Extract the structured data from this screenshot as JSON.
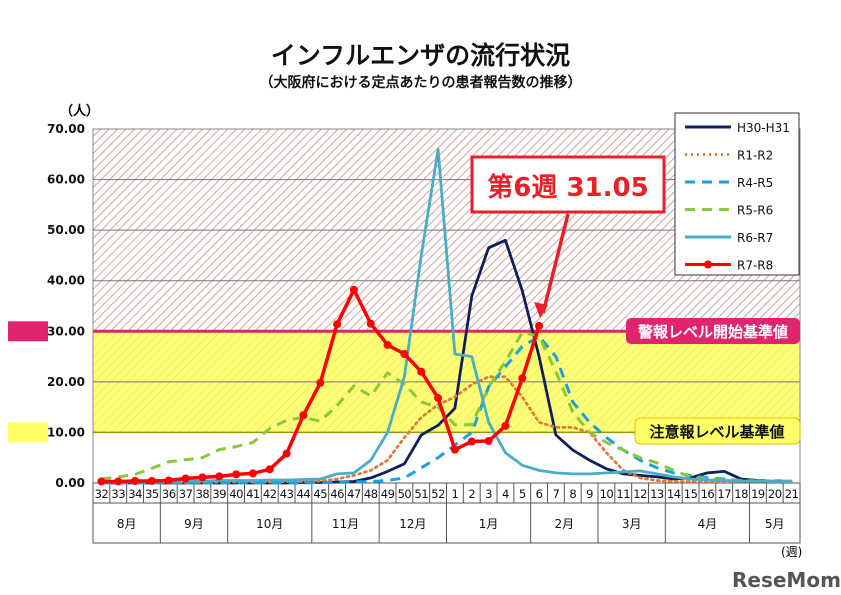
{
  "title": "インフルエンザの流行状況",
  "subtitle": "（大阪府における定点あたりの患者報告数の推移）",
  "watermark": "ReseMom",
  "chart_data": {
    "type": "line",
    "ylabel": "（人）",
    "xlabel": "(週)",
    "ylim": [
      0,
      70
    ],
    "yticks": [
      "0.00",
      "10.00",
      "20.00",
      "30.00",
      "40.00",
      "50.00",
      "60.00",
      "70.00"
    ],
    "grid": true,
    "legend": "top-right",
    "categories": [
      "32",
      "33",
      "34",
      "35",
      "36",
      "37",
      "38",
      "39",
      "40",
      "41",
      "42",
      "43",
      "44",
      "45",
      "46",
      "47",
      "48",
      "49",
      "50",
      "51",
      "52",
      "1",
      "2",
      "3",
      "4",
      "5",
      "6",
      "7",
      "8",
      "9",
      "10",
      "11",
      "12",
      "13",
      "14",
      "15",
      "16",
      "17",
      "18",
      "19",
      "20",
      "21"
    ],
    "months": [
      {
        "label": "8月",
        "weeks": 4
      },
      {
        "label": "9月",
        "weeks": 4
      },
      {
        "label": "10月",
        "weeks": 5
      },
      {
        "label": "11月",
        "weeks": 4
      },
      {
        "label": "12月",
        "weeks": 4
      },
      {
        "label": "1月",
        "weeks": 5
      },
      {
        "label": "2月",
        "weeks": 4
      },
      {
        "label": "3月",
        "weeks": 4
      },
      {
        "label": "4月",
        "weeks": 5
      },
      {
        "label": "5月",
        "weeks": 3
      }
    ],
    "thresholds": [
      {
        "label": "警報レベル開始基準値",
        "value": 30,
        "color": "#e0246e"
      },
      {
        "label": "注意報レベル基準値",
        "value": 10,
        "color": "#ffff66"
      }
    ],
    "annotation": {
      "text": "第6週 31.05",
      "week": "6",
      "value": 31.05,
      "color": "#e8202a"
    },
    "series": [
      {
        "name": "H30-H31",
        "color": "#0f1f5c",
        "style": "solid",
        "values": [
          0,
          0,
          0,
          0,
          0,
          0,
          0,
          0,
          0,
          0,
          0,
          0,
          0.1,
          0.1,
          0.2,
          0.3,
          1,
          2.3,
          3.8,
          9.5,
          11.4,
          14.8,
          37,
          46.5,
          48,
          38,
          25,
          9.5,
          6.5,
          4.5,
          2.8,
          1.8,
          1.5,
          1.2,
          0.8,
          1.0,
          2.0,
          2.3,
          0.8,
          0.5,
          0.4,
          0.4
        ]
      },
      {
        "name": "R1-R2",
        "color": "#e07b39",
        "style": "dotted",
        "values": [
          0.1,
          0.1,
          0.1,
          0.1,
          0.1,
          0.1,
          0.1,
          0.2,
          0.2,
          0.2,
          0.2,
          0.3,
          0.3,
          0.4,
          0.8,
          1.5,
          2.5,
          4.5,
          9,
          13,
          15.5,
          17,
          19.5,
          21,
          21,
          17,
          12,
          11,
          11,
          10,
          6,
          2.5,
          1,
          0.5,
          0.3,
          0.3,
          0.3,
          0.3,
          0.3,
          0.3,
          0.3,
          0.3
        ]
      },
      {
        "name": "R4-R5",
        "color": "#1ba1d9",
        "style": "dashed",
        "values": [
          0,
          0,
          0,
          0,
          0,
          0,
          0,
          0,
          0,
          0,
          0,
          0,
          0,
          0.1,
          0.1,
          0.2,
          0.3,
          0.5,
          1,
          3,
          5,
          7.5,
          10,
          19,
          23,
          27,
          29,
          25,
          16,
          12,
          9,
          6.5,
          4.5,
          3,
          2,
          1.5,
          1,
          0.8,
          0.5,
          0.4,
          0.3,
          0.3
        ]
      },
      {
        "name": "R5-R6",
        "color": "#8cc63f",
        "style": "dashed",
        "values": [
          0.8,
          1.2,
          1.7,
          2.9,
          4.2,
          4.6,
          5.0,
          6.6,
          7.2,
          8.0,
          10.8,
          12.4,
          13.0,
          12.2,
          15.3,
          19.2,
          17.2,
          21.8,
          19.5,
          16,
          15,
          11.5,
          11.5,
          19,
          24,
          29.8,
          29,
          22,
          14,
          10,
          8,
          6.5,
          5,
          4,
          2.5,
          1.2,
          0.8,
          0.6,
          0.5,
          0.4,
          0.4,
          0.4
        ]
      },
      {
        "name": "R6-R7",
        "color": "#4bacc6",
        "style": "solid",
        "values": [
          0.3,
          0.3,
          0.3,
          0.3,
          0.3,
          0.4,
          0.4,
          0.5,
          0.5,
          0.5,
          0.6,
          0.6,
          0.7,
          0.8,
          1.8,
          2,
          4.5,
          10,
          21,
          45,
          66,
          25.5,
          25,
          12,
          6,
          3.5,
          2.5,
          2,
          1.8,
          1.8,
          2,
          2.2,
          2.4,
          1.8,
          1.2,
          0.8,
          0.6,
          0.5,
          0.4,
          0.4,
          0.3,
          0.3
        ]
      },
      {
        "name": "R7-R8",
        "color": "#ff0000",
        "style": "marker",
        "values": [
          0.3,
          0.3,
          0.4,
          0.4,
          0.5,
          0.9,
          1.1,
          1.3,
          1.7,
          1.9,
          2.7,
          5.8,
          13.4,
          19.8,
          31.4,
          38.2,
          31.5,
          27.3,
          25.5,
          22.0,
          16.8,
          6.6,
          8.2,
          8.3,
          11.3,
          20.7,
          31.05,
          null,
          null,
          null,
          null,
          null,
          null,
          null,
          null,
          null,
          null,
          null,
          null,
          null,
          null,
          null
        ]
      }
    ]
  }
}
